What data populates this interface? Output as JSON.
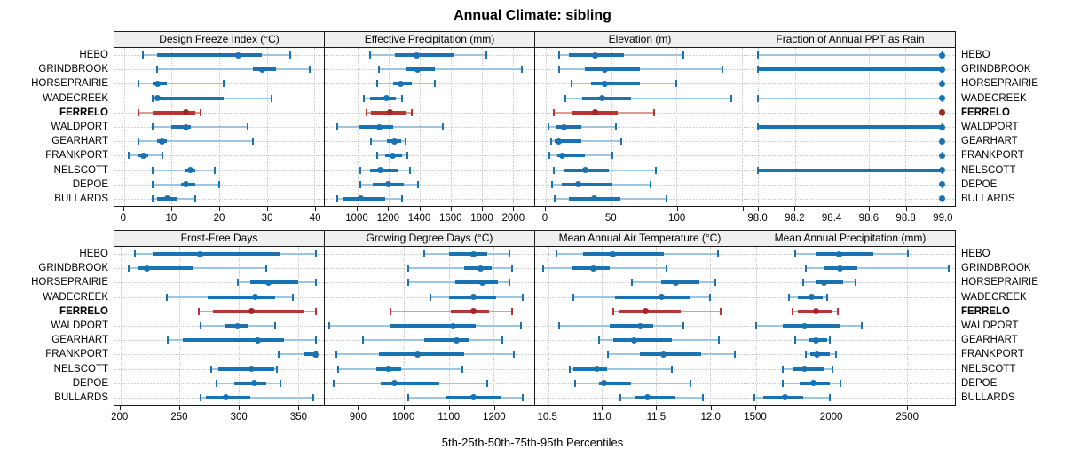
{
  "title": "Annual Climate: sibling",
  "caption": "5th-25th-50th-75th-95th Percentiles",
  "highlight_site": "FERRELO",
  "colors": {
    "blue": "#1973b2",
    "blue_light": "#9ec6e0",
    "blue_dot": "#1973b2",
    "red": "#b43732",
    "red_light": "#dc9c96",
    "red_dot": "#9e2a25",
    "strip_bg": "#efefef",
    "grid": "#c8c8c8",
    "border": "#1a1a1a"
  },
  "chart_data": {
    "type": "percentile-dotplot",
    "title": "Annual Climate: sibling",
    "subtitle": "",
    "xlabel": "5th-25th-50th-75th-95th Percentiles",
    "legend_position": "none",
    "grid": "dotted",
    "percentile_labels": [
      "5th",
      "25th",
      "50th",
      "75th",
      "95th"
    ],
    "sites": [
      "HEBO",
      "GRINDBROOK",
      "HORSEPRAIRIE",
      "WADECREEK",
      "FERRELO",
      "WALDPORT",
      "GEARHART",
      "FRANKPORT",
      "NELSCOTT",
      "DEPOE",
      "BULLARDS"
    ],
    "highlight_site": "FERRELO",
    "panels": [
      {
        "title": "Design Freeze Index (°C)",
        "xlim": [
          -2,
          42
        ],
        "ticks": [
          0,
          10,
          20,
          30,
          40
        ],
        "tick_labels": [
          "0",
          "10",
          "20",
          "30",
          "40"
        ],
        "series": [
          [
            4,
            7,
            24,
            29,
            35
          ],
          [
            7,
            27,
            29,
            32,
            39
          ],
          [
            3,
            6,
            7,
            9,
            21
          ],
          [
            6,
            6.5,
            7,
            21,
            31
          ],
          [
            3,
            6,
            13,
            15,
            16
          ],
          [
            6,
            10,
            13,
            14,
            26
          ],
          [
            3,
            7,
            8,
            9,
            27
          ],
          [
            1,
            3,
            4,
            5,
            8
          ],
          [
            6,
            13,
            14,
            15,
            19
          ],
          [
            6,
            12,
            13,
            15,
            20
          ],
          [
            6,
            7,
            9,
            11,
            15
          ]
        ]
      },
      {
        "title": "Effective Precipitation (mm)",
        "xlim": [
          790,
          2140
        ],
        "ticks": [
          1000,
          1200,
          1400,
          1600,
          1800,
          2000
        ],
        "tick_labels": [
          "1000",
          "1200",
          "1400",
          "1600",
          "1800",
          "2000"
        ],
        "series": [
          [
            1080,
            1240,
            1380,
            1620,
            1830
          ],
          [
            1140,
            1310,
            1390,
            1500,
            2060
          ],
          [
            1130,
            1230,
            1280,
            1350,
            1500
          ],
          [
            1040,
            1080,
            1190,
            1250,
            1290
          ],
          [
            1060,
            1090,
            1210,
            1310,
            1350
          ],
          [
            870,
            1010,
            1140,
            1230,
            1550
          ],
          [
            1090,
            1190,
            1240,
            1280,
            1310
          ],
          [
            1130,
            1180,
            1230,
            1290,
            1320
          ],
          [
            1020,
            1080,
            1150,
            1260,
            1340
          ],
          [
            1020,
            1100,
            1200,
            1300,
            1390
          ],
          [
            870,
            910,
            1020,
            1180,
            1290
          ]
        ]
      },
      {
        "title": "Elevation (m)",
        "xlim": [
          -8,
          152
        ],
        "ticks": [
          0,
          50,
          100,
          150
        ],
        "tick_labels": [
          "0",
          "50",
          "100",
          ""
        ],
        "series": [
          [
            10,
            18,
            38,
            60,
            105
          ],
          [
            10,
            30,
            45,
            72,
            135
          ],
          [
            20,
            35,
            45,
            72,
            100
          ],
          [
            15,
            28,
            43,
            65,
            142
          ],
          [
            6,
            20,
            38,
            55,
            83
          ],
          [
            2,
            8,
            14,
            27,
            54
          ],
          [
            4,
            7,
            10,
            27,
            58
          ],
          [
            3,
            9,
            13,
            30,
            51
          ],
          [
            6,
            14,
            30,
            48,
            84
          ],
          [
            5,
            12,
            25,
            51,
            80
          ],
          [
            7,
            18,
            37,
            57,
            92
          ]
        ]
      },
      {
        "title": "Fraction of Annual PPT as Rain",
        "xlim": [
          97.93,
          99.07
        ],
        "ticks": [
          98.0,
          98.2,
          98.4,
          98.6,
          98.8,
          99.0
        ],
        "tick_labels": [
          "98.0",
          "98.2",
          "98.4",
          "98.6",
          "98.8",
          "99.0"
        ],
        "series": [
          [
            98.0,
            99.0,
            99.0,
            99.0,
            99.0
          ],
          [
            98.0,
            98.0,
            99.0,
            99.0,
            99.0
          ],
          [
            99.0,
            99.0,
            99.0,
            99.0,
            99.0
          ],
          [
            98.0,
            99.0,
            99.0,
            99.0,
            99.0
          ],
          [
            99.0,
            99.0,
            99.0,
            99.0,
            99.0
          ],
          [
            98.0,
            98.0,
            99.0,
            99.0,
            99.0
          ],
          [
            99.0,
            99.0,
            99.0,
            99.0,
            99.0
          ],
          [
            99.0,
            99.0,
            99.0,
            99.0,
            99.0
          ],
          [
            98.0,
            98.0,
            99.0,
            99.0,
            99.0
          ],
          [
            99.0,
            99.0,
            99.0,
            99.0,
            99.0
          ],
          [
            99.0,
            99.0,
            99.0,
            99.0,
            99.0
          ]
        ]
      },
      {
        "title": "Frost-Free Days",
        "xlim": [
          195,
          372
        ],
        "ticks": [
          200,
          250,
          300,
          350
        ],
        "tick_labels": [
          "200",
          "250",
          "300",
          "350"
        ],
        "series": [
          [
            212,
            227,
            267,
            335,
            365
          ],
          [
            207,
            215,
            222,
            262,
            323
          ],
          [
            299,
            310,
            325,
            350,
            365
          ],
          [
            239,
            274,
            314,
            331,
            346
          ],
          [
            266,
            278,
            311,
            355,
            365
          ],
          [
            268,
            288,
            299,
            308,
            331
          ],
          [
            240,
            253,
            316,
            338,
            365
          ],
          [
            334,
            355,
            365,
            366,
            366
          ],
          [
            277,
            283,
            311,
            330,
            332
          ],
          [
            281,
            296,
            313,
            323,
            335
          ],
          [
            268,
            272,
            289,
            310,
            363
          ]
        ]
      },
      {
        "title": "Growing Degree Days (°C)",
        "xlim": [
          825,
          1290
        ],
        "ticks": [
          900,
          1000,
          1100,
          1200
        ],
        "tick_labels": [
          "900",
          "1000",
          "1100",
          "1200"
        ],
        "series": [
          [
            1045,
            1100,
            1155,
            1185,
            1235
          ],
          [
            1010,
            1135,
            1170,
            1195,
            1240
          ],
          [
            1010,
            1115,
            1175,
            1210,
            1235
          ],
          [
            1060,
            1100,
            1155,
            1205,
            1265
          ],
          [
            970,
            1105,
            1155,
            1190,
            1240
          ],
          [
            835,
            970,
            1110,
            1160,
            1260
          ],
          [
            910,
            1045,
            1118,
            1145,
            1220
          ],
          [
            850,
            945,
            1030,
            1135,
            1245
          ],
          [
            855,
            940,
            965,
            995,
            1130
          ],
          [
            845,
            950,
            980,
            1080,
            1185
          ],
          [
            1010,
            1095,
            1155,
            1215,
            1265
          ]
        ]
      },
      {
        "title": "Mean Annual Air Temperature (°C)",
        "xlim": [
          10.38,
          12.32
        ],
        "ticks": [
          10.5,
          11.0,
          11.5,
          12.0
        ],
        "tick_labels": [
          "10.5",
          "11.0",
          "11.5",
          "12.0"
        ],
        "series": [
          [
            10.58,
            10.82,
            11.1,
            11.57,
            12.07
          ],
          [
            10.45,
            10.72,
            10.92,
            11.07,
            11.6
          ],
          [
            11.28,
            11.55,
            11.68,
            11.9,
            12.05
          ],
          [
            10.73,
            11.12,
            11.55,
            11.82,
            12.0
          ],
          [
            11.1,
            11.15,
            11.4,
            11.73,
            12.1
          ],
          [
            10.6,
            11.07,
            11.35,
            11.47,
            11.75
          ],
          [
            10.97,
            11.1,
            11.3,
            11.65,
            12.08
          ],
          [
            11.05,
            11.35,
            11.57,
            11.92,
            12.23
          ],
          [
            10.7,
            10.73,
            10.95,
            11.05,
            11.65
          ],
          [
            10.75,
            10.97,
            11.02,
            11.27,
            11.82
          ],
          [
            11.17,
            11.3,
            11.42,
            11.68,
            11.93
          ]
        ]
      },
      {
        "title": "Mean Annual Precipitation (mm)",
        "xlim": [
          1430,
          2820
        ],
        "ticks": [
          1500,
          2000,
          2500
        ],
        "tick_labels": [
          "1500",
          "2000",
          "2500"
        ],
        "series": [
          [
            1760,
            1900,
            2050,
            2280,
            2510
          ],
          [
            1830,
            1950,
            2060,
            2170,
            2780
          ],
          [
            1810,
            1900,
            1950,
            2080,
            2160
          ],
          [
            1720,
            1780,
            1870,
            1940,
            1970
          ],
          [
            1740,
            1780,
            1900,
            2010,
            2040
          ],
          [
            1500,
            1680,
            1820,
            2060,
            2200
          ],
          [
            1760,
            1850,
            1900,
            1970,
            1990
          ],
          [
            1830,
            1860,
            1905,
            1990,
            2030
          ],
          [
            1680,
            1740,
            1820,
            1950,
            2010
          ],
          [
            1680,
            1790,
            1880,
            1990,
            2060
          ],
          [
            1490,
            1550,
            1690,
            1810,
            1990
          ]
        ]
      }
    ]
  }
}
